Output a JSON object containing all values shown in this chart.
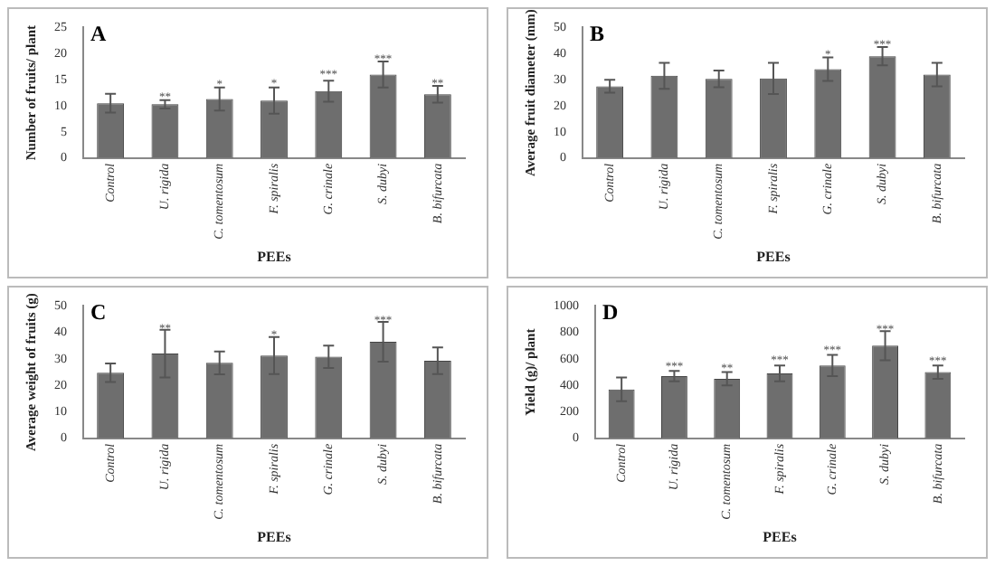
{
  "chart_data": [
    {
      "type": "bar",
      "title": "A",
      "xlabel": "PEEs",
      "ylabel": "Number of fruits/ plant",
      "categories": [
        "Control",
        "U. rigida",
        "C. tomentosum",
        "F. spiralis",
        "G. crinale",
        "S. dubyi",
        "B. bifurcata"
      ],
      "values": [
        10.5,
        10.3,
        11.3,
        11,
        12.8,
        16,
        12.2
      ],
      "errors": [
        1.8,
        0.8,
        2.2,
        2.5,
        2,
        2.5,
        1.6
      ],
      "color": "#6e6e6e",
      "ylim": [
        0,
        25
      ],
      "yticks": [
        0,
        5,
        10,
        15,
        20,
        25
      ],
      "grid": false,
      "legend": false,
      "annotations": [
        {
          "text": "**",
          "x": "U. rigida",
          "y": 11.6
        },
        {
          "text": "*",
          "x": "C. tomentosum",
          "y": 14
        },
        {
          "text": "*",
          "x": "F. spiralis",
          "y": 14.3
        },
        {
          "text": "***",
          "x": "G. crinale",
          "y": 16
        },
        {
          "text": "***",
          "x": "S. dubyi",
          "y": 18.9
        },
        {
          "text": "**",
          "x": "B. bifurcata",
          "y": 14.2
        }
      ]
    },
    {
      "type": "bar",
      "title": "B",
      "xlabel": "PEEs",
      "ylabel": "Average fruit diameter (mm)",
      "categories": [
        "Control",
        "U. rigida",
        "C. tomentosum",
        "F. spiralis",
        "G. crinale",
        "S. dubyi",
        "B. bifurcata"
      ],
      "values": [
        27.5,
        31.5,
        30.3,
        30.5,
        34,
        39,
        32
      ],
      "errors": [
        2.5,
        5,
        3.2,
        6,
        4.5,
        3.5,
        4.5
      ],
      "color": "#6e6e6e",
      "ylim": [
        0,
        50
      ],
      "yticks": [
        0,
        10,
        20,
        30,
        40,
        50
      ],
      "grid": false,
      "legend": false,
      "annotations": [
        {
          "text": "*",
          "x": "G. crinale",
          "y": 39.5
        },
        {
          "text": "***",
          "x": "S. dubyi",
          "y": 43.5
        }
      ]
    },
    {
      "type": "bar",
      "title": "C",
      "xlabel": "PEEs",
      "ylabel": "Average weight of fruits (g)",
      "categories": [
        "Control",
        "U. rigida",
        "C. tomentosum",
        "F. spiralis",
        "G. crinale",
        "S. dubyi",
        "B. bifurcata"
      ],
      "values": [
        24.8,
        32,
        28.5,
        31.3,
        30.8,
        36.5,
        29.3
      ],
      "errors": [
        3.5,
        9,
        4.3,
        7,
        4.2,
        7.5,
        5
      ],
      "color": "#6e6e6e",
      "ylim": [
        0,
        50
      ],
      "yticks": [
        0,
        10,
        20,
        30,
        40,
        50
      ],
      "grid": false,
      "legend": false,
      "annotations": [
        {
          "text": "**",
          "x": "U. rigida",
          "y": 41.5
        },
        {
          "text": "*",
          "x": "F. spiralis",
          "y": 39
        },
        {
          "text": "***",
          "x": "S. dubyi",
          "y": 44.5
        }
      ]
    },
    {
      "type": "bar",
      "title": "D",
      "xlabel": "PEEs",
      "ylabel": "Yield (g)/ plant",
      "categories": [
        "Control",
        "U. rigida",
        "C. tomentosum",
        "F. spiralis",
        "G. crinale",
        "S. dubyi",
        "B. bifurcata"
      ],
      "values": [
        370,
        470,
        450,
        490,
        550,
        700,
        500
      ],
      "errors": [
        90,
        40,
        50,
        60,
        80,
        110,
        50
      ],
      "color": "#6e6e6e",
      "ylim": [
        0,
        1000
      ],
      "yticks": [
        0,
        200,
        400,
        600,
        800,
        1000
      ],
      "grid": false,
      "legend": false,
      "annotations": [
        {
          "text": "***",
          "x": "U. rigida",
          "y": 540
        },
        {
          "text": "**",
          "x": "C. tomentosum",
          "y": 525
        },
        {
          "text": "***",
          "x": "F. spiralis",
          "y": 590
        },
        {
          "text": "***",
          "x": "G. crinale",
          "y": 665
        },
        {
          "text": "***",
          "x": "S. dubyi",
          "y": 820
        },
        {
          "text": "***",
          "x": "B. bifurcata",
          "y": 580
        }
      ]
    }
  ]
}
